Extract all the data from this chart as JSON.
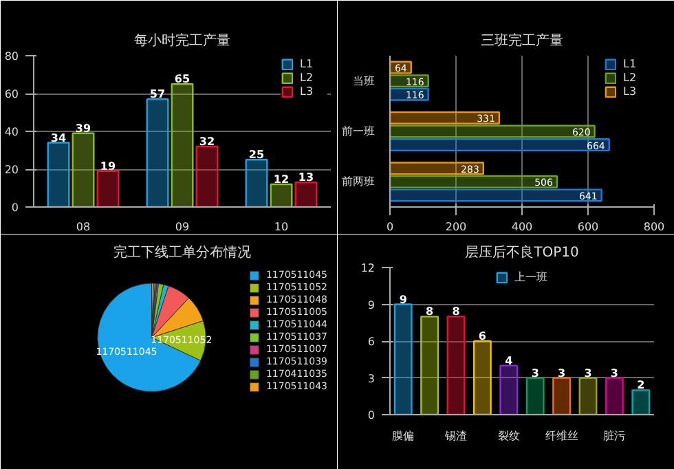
{
  "chart_data": [
    {
      "type": "bar",
      "title": "每小时完工产量",
      "categories": [
        "08",
        "09",
        "10"
      ],
      "series": [
        {
          "name": "L1",
          "color": "#1ba1e2",
          "values": [
            34,
            57,
            25
          ]
        },
        {
          "name": "L2",
          "color": "#8cbf26",
          "values": [
            39,
            65,
            12
          ]
        },
        {
          "name": "L3",
          "color": "#e51432",
          "values": [
            19,
            32,
            13
          ]
        }
      ],
      "ylim": [
        0,
        80
      ],
      "yticks": [
        0,
        20,
        40,
        60,
        80
      ],
      "grid": "y",
      "legend": "right",
      "data_labels": true
    },
    {
      "type": "bar",
      "title": "三班完工产量",
      "orientation": "horizontal",
      "categories": [
        "当班",
        "前一班",
        "前两班"
      ],
      "series": [
        {
          "name": "L1",
          "color": "#1b7bd6",
          "values": [
            116,
            664,
            641
          ]
        },
        {
          "name": "L2",
          "color": "#6aa121",
          "values": [
            116,
            620,
            506
          ]
        },
        {
          "name": "L3",
          "color": "#f09609",
          "values": [
            64,
            331,
            283
          ]
        }
      ],
      "xlim": [
        0,
        800
      ],
      "xticks": [
        0,
        200,
        400,
        600,
        800
      ],
      "grid": "x",
      "legend": "right",
      "data_labels": true
    },
    {
      "type": "pie",
      "title": "完工下线工单分布情况",
      "categories": [
        "1170511045",
        "1170511052",
        "1170511048",
        "1170511005",
        "1170511044",
        "1170511037",
        "1170511007",
        "1170511039",
        "1170411035",
        "1170511043"
      ],
      "values": [
        68,
        12,
        8,
        7,
        1.5,
        1.5,
        0.5,
        0.5,
        0.5,
        0.5
      ],
      "colors": [
        "#1aa3e8",
        "#9ec11a",
        "#f5a21b",
        "#f25a5a",
        "#22b5c8",
        "#7fc52a",
        "#d63a7a",
        "#1f78d1",
        "#6e9e1e",
        "#f29a1a"
      ],
      "annotations": [
        "1170511045",
        "1170511052"
      ],
      "legend": "right"
    },
    {
      "type": "bar",
      "title": "层压后不良TOP10",
      "categories": [
        "膜偏",
        null,
        "锡渣",
        null,
        "裂纹",
        null,
        "纤维丝",
        null,
        "脏污",
        null
      ],
      "series": [
        {
          "name": "上一班",
          "color": "#1ba1e2",
          "values": [
            9,
            8,
            8,
            6,
            4,
            3,
            3,
            3,
            3,
            2
          ],
          "colors": [
            "#1ba1e2",
            "#a4c400",
            "#e51432",
            "#f0c30a",
            "#8a2be2",
            "#00a060",
            "#fa6800",
            "#a0a020",
            "#d80093",
            "#00aba9"
          ]
        }
      ],
      "ylim": [
        0,
        12
      ],
      "yticks": [
        0,
        3,
        6,
        9,
        12
      ],
      "grid": "y",
      "legend": "top",
      "data_labels": true
    }
  ]
}
